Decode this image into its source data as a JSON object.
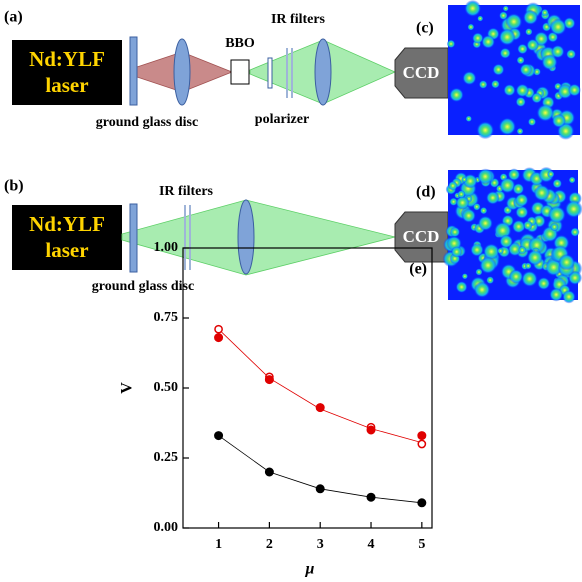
{
  "labels": {
    "a": "(a)",
    "b": "(b)",
    "c": "(c)",
    "d": "(d)"
  },
  "setup_a": {
    "laser": [
      "Nd:YLF",
      "laser"
    ],
    "disc": "ground glass disc",
    "crystal": "BBO",
    "filters": "IR filters",
    "polarizer": "polarizer",
    "camera": "CCD"
  },
  "setup_b": {
    "laser": [
      "Nd:YLF",
      "laser"
    ],
    "disc": "ground glass disc",
    "filters": "IR filters",
    "camera": "CCD"
  },
  "chart_data": {
    "type": "scatter",
    "annotation": "(e)",
    "xlabel": "μ",
    "ylabel": "V",
    "x": [
      1,
      2,
      3,
      4,
      5
    ],
    "xlim": [
      0.3,
      5.2
    ],
    "xticks": [
      1,
      2,
      3,
      4,
      5
    ],
    "ylim": [
      0,
      1
    ],
    "yticks": [
      {
        "value": 0,
        "label": "0.00"
      },
      {
        "value": 0.25,
        "label": "0.25"
      },
      {
        "value": 0.5,
        "label": "0.50"
      },
      {
        "value": 0.75,
        "label": "0.75"
      },
      {
        "value": 1,
        "label": "1.00"
      }
    ],
    "series": [
      {
        "color": "#e00000",
        "marker": "line",
        "values": [
          0.71,
          0.535,
          0.425,
          0.355,
          0.305
        ]
      },
      {
        "color": "#000000",
        "marker": "line",
        "values": [
          0.33,
          0.2,
          0.14,
          0.11,
          0.09
        ]
      },
      {
        "color": "#e00000",
        "marker": "open",
        "values": [
          0.71,
          0.54,
          0.43,
          0.36,
          0.3
        ]
      },
      {
        "color": "#e00000",
        "marker": "filled",
        "values": [
          0.68,
          0.53,
          0.43,
          0.35,
          0.33
        ]
      },
      {
        "color": "#000000",
        "marker": "filled",
        "values": [
          0.33,
          0.2,
          0.14,
          0.11,
          0.09
        ]
      }
    ]
  }
}
